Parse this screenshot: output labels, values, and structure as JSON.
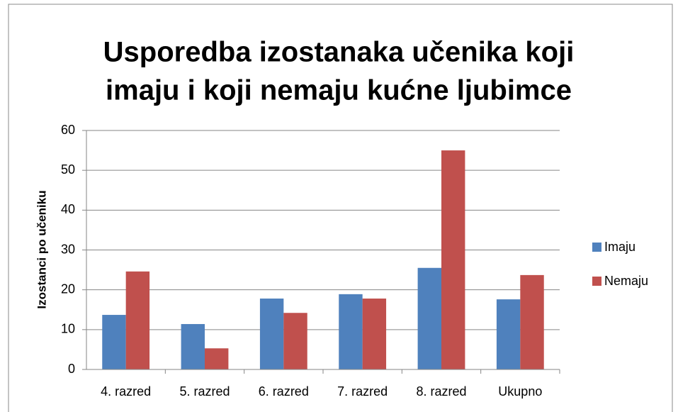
{
  "chart_data": {
    "type": "bar",
    "title": [
      "Usporedba izostanaka učenika koji",
      "imaju i koji nemaju kućne ljubimce"
    ],
    "y_label": "Izostanci po učeniku",
    "categories": [
      "4. razred",
      "5. razred",
      "6. razred",
      "7. razred",
      "8. razred",
      "Ukupno"
    ],
    "series": [
      {
        "name": "Imaju",
        "color": "#4f81bd",
        "values": [
          13.7,
          11.4,
          17.8,
          18.9,
          25.5,
          17.6
        ]
      },
      {
        "name": "Nemaju",
        "color": "#c0504d",
        "values": [
          24.6,
          5.3,
          14.2,
          17.8,
          55,
          23.7
        ]
      }
    ],
    "ylim": [
      0,
      60
    ],
    "yticks": [
      0,
      10,
      20,
      30,
      40,
      50,
      60
    ],
    "grid": true,
    "legend": "right"
  }
}
